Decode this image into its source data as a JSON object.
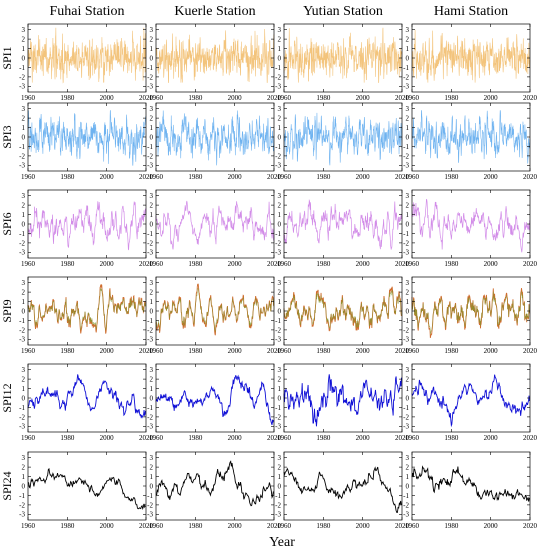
{
  "figure": {
    "columns": [
      "Fuhai Station",
      "Kuerle Station",
      "Yutian Station",
      "Hami Station"
    ],
    "rows": [
      "SPI1",
      "SPI3",
      "SPI6",
      "SPI9",
      "SPI12",
      "SPI24"
    ],
    "xlabel": "Year"
  },
  "chart_data": {
    "type": "line",
    "layout": "small-multiples-6x4",
    "x": {
      "min": 1960,
      "max": 2020,
      "ticks": [
        1960,
        1980,
        2000,
        2020
      ]
    },
    "y": {
      "min": -3.6,
      "max": 3.6,
      "ticks": [
        3,
        2,
        1,
        0,
        -1,
        -2,
        -3
      ]
    },
    "grid": false,
    "legend": "none",
    "series_colors": {
      "SPI1": "#f3c47c",
      "SPI3": "#6fb3f0",
      "SPI6": "#d28ce8",
      "SPI9": "#cf6d2f",
      "SPI12": "#1010d6",
      "SPI24": "#000000"
    },
    "series_overlay_colors": {
      "SPI9": "#7a9a2e"
    },
    "approx_envelope": {
      "SPI1": {
        "range": [
          -2.6,
          3.2
        ],
        "samples_per_year": 12
      },
      "SPI3": {
        "range": [
          -3.0,
          2.8
        ],
        "samples_per_year": 12
      },
      "SPI6": {
        "range": [
          -3.0,
          2.6
        ],
        "samples_per_year": 6
      },
      "SPI9": {
        "range": [
          -3.0,
          2.8
        ],
        "samples_per_year": 6
      },
      "SPI12": {
        "range": [
          -3.0,
          3.0
        ],
        "samples_per_year": 4
      },
      "SPI24": {
        "range": [
          -2.8,
          2.6
        ],
        "samples_per_year": 3
      }
    }
  }
}
